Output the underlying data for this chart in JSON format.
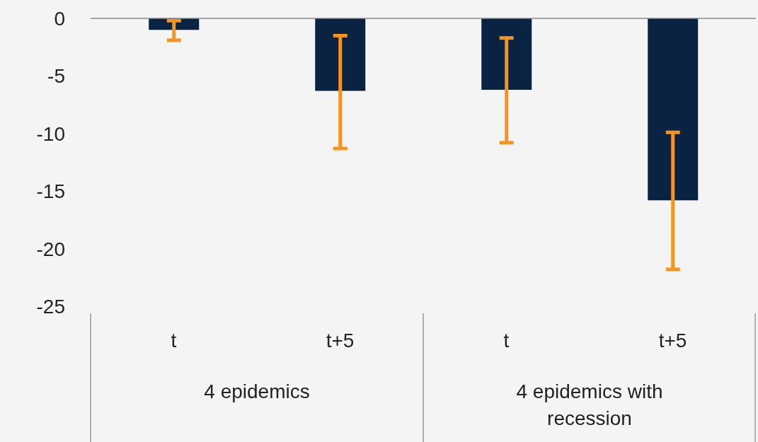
{
  "chart_data": {
    "type": "bar",
    "categories": [
      "t",
      "t+5",
      "t",
      "t+5"
    ],
    "values": [
      -1.0,
      -6.3,
      -6.2,
      -15.8
    ],
    "errors": [
      [
        -1.9,
        -0.2
      ],
      [
        -11.3,
        -1.5
      ],
      [
        -10.8,
        -1.7
      ],
      [
        -21.8,
        -9.9
      ]
    ],
    "color": "#0b2343",
    "ylim": [
      -25,
      0
    ],
    "yticks": [
      -25,
      -20,
      -15,
      -10,
      -5,
      0
    ],
    "annotations": [
      "4 epidemics",
      "4 epidemics with recession"
    ]
  }
}
